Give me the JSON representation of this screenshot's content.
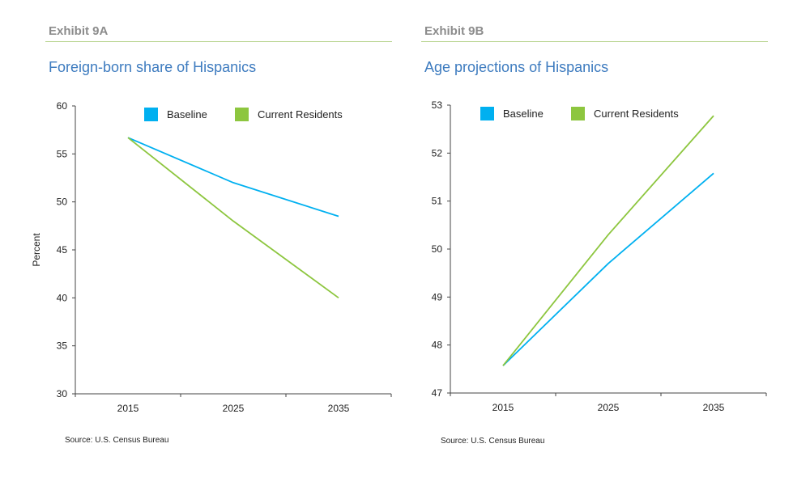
{
  "exhibits": [
    {
      "label": "Exhibit 9A",
      "title": "Foreign-born share of Hispanics",
      "source": "Source: U.S. Census Bureau"
    },
    {
      "label": "Exhibit 9B",
      "title": "Age projections of Hispanics",
      "source": "Source: U.S. Census Bureau"
    }
  ],
  "colors": {
    "baseline": "#00b0f0",
    "current": "#8dc63f"
  },
  "chart_data": [
    {
      "type": "line",
      "title": "Foreign-born share of Hispanics",
      "xlabel": "",
      "ylabel": "Percent",
      "x": [
        "2015",
        "2025",
        "2035"
      ],
      "ylim": [
        30,
        60
      ],
      "yticks": [
        "30",
        "35",
        "40",
        "45",
        "50",
        "55",
        "60"
      ],
      "legend": "top",
      "grid": false,
      "series": [
        {
          "name": "Baseline",
          "values": [
            56.7,
            52.0,
            48.5
          ]
        },
        {
          "name": "Current Residents",
          "values": [
            56.7,
            48.0,
            40.0
          ]
        }
      ]
    },
    {
      "type": "line",
      "title": "Age projections of Hispanics",
      "xlabel": "",
      "ylabel": "",
      "x": [
        "2015",
        "2025",
        "2035"
      ],
      "ylim": [
        47,
        53
      ],
      "yticks": [
        "47",
        "48",
        "49",
        "50",
        "51",
        "52",
        "53"
      ],
      "legend": "top",
      "grid": false,
      "series": [
        {
          "name": "Baseline",
          "values": [
            47.57,
            49.7,
            51.58
          ]
        },
        {
          "name": "Current Residents",
          "values": [
            47.57,
            50.3,
            52.78
          ]
        }
      ]
    }
  ]
}
